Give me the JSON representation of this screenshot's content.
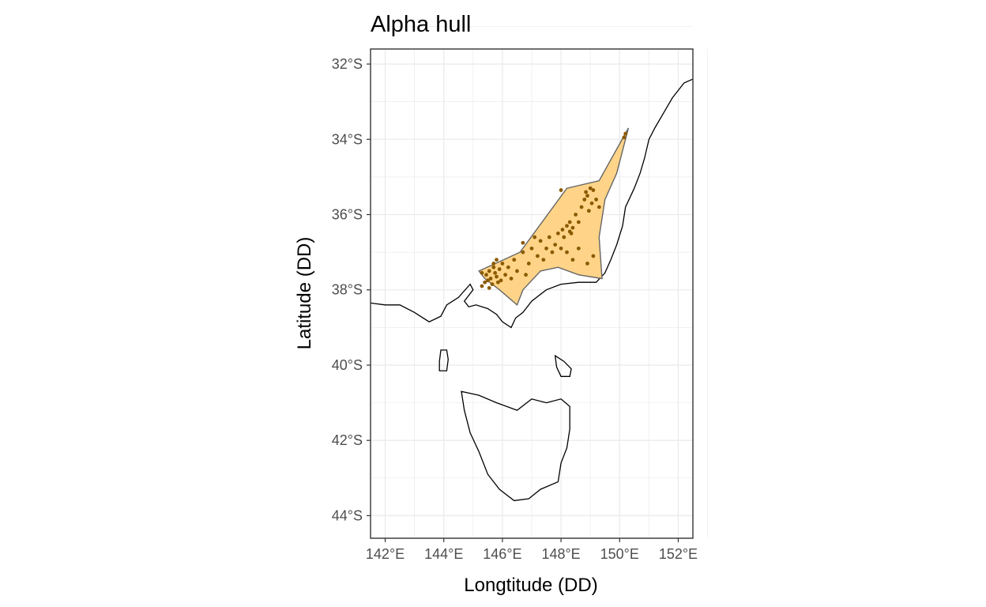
{
  "chart_data": {
    "type": "scatter",
    "title": "Alpha hull",
    "xlabel": "Longtitude (DD)",
    "ylabel": "Latitude (DD)",
    "xlim": [
      141.5,
      152.5
    ],
    "ylim": [
      -44.6,
      -31.6
    ],
    "x_ticks": [
      142,
      144,
      146,
      148,
      150,
      152
    ],
    "x_tick_labels": [
      "142°E",
      "144°E",
      "146°E",
      "148°E",
      "150°E",
      "152°E"
    ],
    "y_ticks": [
      -32,
      -34,
      -36,
      -38,
      -40,
      -42,
      -44
    ],
    "y_tick_labels": [
      "32°S",
      "34°S",
      "36°S",
      "38°S",
      "40°S",
      "42°S",
      "44°S"
    ],
    "grid": true,
    "colors": {
      "hull_fill": "#ffd282",
      "hull_stroke": "#666666",
      "point": "#8b5a00",
      "coastline": "#000000",
      "grid": "#ebebeb",
      "panel_border": "#333333"
    },
    "hull": [
      [
        145.2,
        -37.5
      ],
      [
        146.6,
        -37.0
      ],
      [
        148.2,
        -35.3
      ],
      [
        149.3,
        -35.1
      ],
      [
        150.3,
        -33.7
      ],
      [
        149.9,
        -34.9
      ],
      [
        149.5,
        -35.6
      ],
      [
        149.3,
        -36.6
      ],
      [
        149.4,
        -37.7
      ],
      [
        148.6,
        -37.6
      ],
      [
        147.9,
        -37.4
      ],
      [
        147.3,
        -37.5
      ],
      [
        146.7,
        -38.0
      ],
      [
        146.5,
        -38.4
      ],
      [
        145.9,
        -38.0
      ],
      [
        145.4,
        -37.7
      ],
      [
        145.2,
        -37.5
      ]
    ],
    "points": [
      [
        145.3,
        -37.55
      ],
      [
        145.45,
        -37.6
      ],
      [
        145.55,
        -37.5
      ],
      [
        145.6,
        -37.7
      ],
      [
        145.7,
        -37.4
      ],
      [
        145.75,
        -37.55
      ],
      [
        145.8,
        -37.65
      ],
      [
        145.5,
        -37.75
      ],
      [
        145.4,
        -37.8
      ],
      [
        145.65,
        -37.85
      ],
      [
        145.85,
        -37.8
      ],
      [
        145.95,
        -37.75
      ],
      [
        145.7,
        -37.3
      ],
      [
        145.9,
        -37.45
      ],
      [
        145.55,
        -37.95
      ],
      [
        146.1,
        -37.6
      ],
      [
        146.2,
        -37.4
      ],
      [
        146.4,
        -37.2
      ],
      [
        146.5,
        -37.5
      ],
      [
        146.7,
        -37.0
      ],
      [
        146.9,
        -37.3
      ],
      [
        147.0,
        -36.9
      ],
      [
        147.2,
        -37.1
      ],
      [
        147.3,
        -36.7
      ],
      [
        147.4,
        -37.2
      ],
      [
        147.5,
        -36.9
      ],
      [
        147.6,
        -36.6
      ],
      [
        147.7,
        -37.0
      ],
      [
        147.8,
        -36.8
      ],
      [
        147.9,
        -36.5
      ],
      [
        148.0,
        -36.9
      ],
      [
        148.05,
        -36.4
      ],
      [
        148.1,
        -36.6
      ],
      [
        148.2,
        -36.3
      ],
      [
        148.3,
        -36.2
      ],
      [
        148.35,
        -36.5
      ],
      [
        148.4,
        -36.35
      ],
      [
        148.5,
        -36.0
      ],
      [
        148.6,
        -36.2
      ],
      [
        148.7,
        -35.8
      ],
      [
        148.8,
        -35.6
      ],
      [
        148.85,
        -35.4
      ],
      [
        148.9,
        -35.5
      ],
      [
        149.0,
        -35.3
      ],
      [
        149.05,
        -35.7
      ],
      [
        149.1,
        -35.35
      ],
      [
        149.2,
        -35.6
      ],
      [
        149.3,
        -35.8
      ],
      [
        148.95,
        -35.9
      ],
      [
        148.6,
        -36.9
      ],
      [
        148.9,
        -37.3
      ],
      [
        149.1,
        -37.1
      ],
      [
        148.4,
        -37.2
      ],
      [
        148.2,
        -37.0
      ],
      [
        146.8,
        -37.6
      ],
      [
        146.0,
        -37.3
      ],
      [
        145.8,
        -37.2
      ],
      [
        145.3,
        -37.9
      ],
      [
        146.3,
        -37.7
      ],
      [
        150.15,
        -33.95
      ],
      [
        150.2,
        -33.85
      ],
      [
        148.0,
        -35.35
      ],
      [
        146.7,
        -36.75
      ],
      [
        148.3,
        -36.45
      ],
      [
        147.1,
        -36.6
      ]
    ],
    "coastline": [
      [
        141.5,
        -38.35
      ],
      [
        142.0,
        -38.4
      ],
      [
        142.5,
        -38.4
      ],
      [
        143.0,
        -38.6
      ],
      [
        143.5,
        -38.85
      ],
      [
        143.9,
        -38.7
      ],
      [
        144.1,
        -38.4
      ],
      [
        144.5,
        -38.2
      ],
      [
        144.9,
        -37.85
      ],
      [
        145.0,
        -38.0
      ],
      [
        144.7,
        -38.3
      ],
      [
        144.85,
        -38.45
      ],
      [
        145.1,
        -38.4
      ],
      [
        145.5,
        -38.5
      ],
      [
        145.8,
        -38.65
      ],
      [
        146.0,
        -38.85
      ],
      [
        146.3,
        -39.0
      ],
      [
        146.45,
        -38.75
      ],
      [
        146.7,
        -38.6
      ],
      [
        147.0,
        -38.3
      ],
      [
        147.5,
        -38.0
      ],
      [
        148.0,
        -37.85
      ],
      [
        148.6,
        -37.8
      ],
      [
        149.2,
        -37.8
      ],
      [
        149.5,
        -37.55
      ],
      [
        149.7,
        -37.2
      ],
      [
        149.9,
        -36.8
      ],
      [
        150.1,
        -36.3
      ],
      [
        150.2,
        -35.8
      ],
      [
        150.5,
        -35.3
      ],
      [
        150.7,
        -34.9
      ],
      [
        150.85,
        -34.5
      ],
      [
        151.0,
        -34.0
      ],
      [
        151.2,
        -33.7
      ],
      [
        151.5,
        -33.3
      ],
      [
        151.8,
        -32.9
      ],
      [
        152.2,
        -32.5
      ],
      [
        152.5,
        -32.4
      ]
    ],
    "islands": [
      [
        [
          143.9,
          -39.6
        ],
        [
          144.1,
          -39.6
        ],
        [
          144.15,
          -39.85
        ],
        [
          144.1,
          -40.15
        ],
        [
          143.85,
          -40.15
        ],
        [
          143.85,
          -39.9
        ],
        [
          143.9,
          -39.6
        ]
      ],
      [
        [
          147.8,
          -39.75
        ],
        [
          148.1,
          -39.9
        ],
        [
          148.35,
          -40.1
        ],
        [
          148.3,
          -40.3
        ],
        [
          148.0,
          -40.3
        ],
        [
          147.85,
          -40.05
        ],
        [
          147.8,
          -39.75
        ]
      ],
      [
        [
          144.6,
          -40.7
        ],
        [
          145.2,
          -40.8
        ],
        [
          145.8,
          -41.0
        ],
        [
          146.5,
          -41.2
        ],
        [
          147.0,
          -40.9
        ],
        [
          147.5,
          -41.0
        ],
        [
          148.0,
          -40.9
        ],
        [
          148.3,
          -41.1
        ],
        [
          148.3,
          -41.7
        ],
        [
          148.2,
          -42.2
        ],
        [
          148.0,
          -42.6
        ],
        [
          147.9,
          -43.1
        ],
        [
          147.3,
          -43.3
        ],
        [
          146.9,
          -43.55
        ],
        [
          146.4,
          -43.6
        ],
        [
          145.9,
          -43.3
        ],
        [
          145.5,
          -42.9
        ],
        [
          145.2,
          -42.3
        ],
        [
          144.9,
          -41.8
        ],
        [
          144.7,
          -41.2
        ],
        [
          144.6,
          -40.7
        ]
      ]
    ]
  }
}
